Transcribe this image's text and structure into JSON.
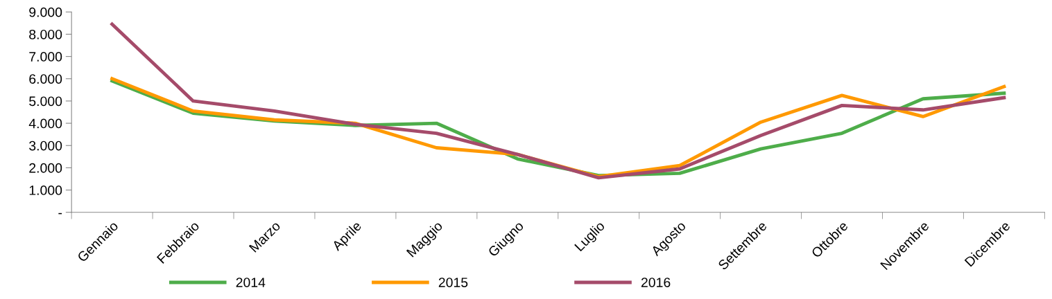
{
  "chart_data": {
    "type": "line",
    "categories": [
      "Gennaio",
      "Febbraio",
      "Marzo",
      "Aprile",
      "Maggio",
      "Giugno",
      "Luglio",
      "Agosto",
      "Settembre",
      "Ottobre",
      "Novembre",
      "Dicembre"
    ],
    "series": [
      {
        "name": "2014",
        "color": "#4ead4a",
        "values": [
          5900,
          4450,
          4100,
          3900,
          4000,
          2400,
          1650,
          1750,
          2850,
          3550,
          5100,
          5350
        ]
      },
      {
        "name": "2015",
        "color": "#ff9900",
        "values": [
          6000,
          4550,
          4150,
          4000,
          2900,
          2600,
          1600,
          2100,
          4050,
          5250,
          4300,
          5650
        ]
      },
      {
        "name": "2016",
        "color": "#a54b6a",
        "values": [
          8450,
          5000,
          4550,
          3950,
          3550,
          2600,
          1550,
          1950,
          3450,
          4800,
          4600,
          5150
        ]
      }
    ],
    "ylim": [
      0,
      9000
    ],
    "yticks": [
      {
        "value": 0,
        "label": "-"
      },
      {
        "value": 1000,
        "label": "1.000"
      },
      {
        "value": 2000,
        "label": "2.000"
      },
      {
        "value": 3000,
        "label": "3.000"
      },
      {
        "value": 4000,
        "label": "4.000"
      },
      {
        "value": 5000,
        "label": "5.000"
      },
      {
        "value": 6000,
        "label": "6.000"
      },
      {
        "value": 7000,
        "label": "7.000"
      },
      {
        "value": 8000,
        "label": "8.000"
      },
      {
        "value": 9000,
        "label": "9.000"
      }
    ],
    "grid": false,
    "legend": "bottom",
    "marker": "none",
    "line_style": "solid"
  }
}
